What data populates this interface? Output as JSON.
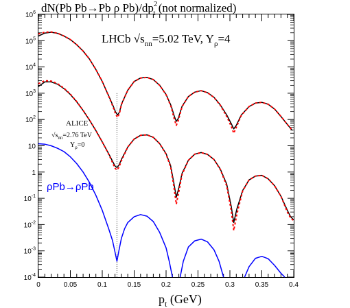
{
  "chart_data": {
    "type": "line",
    "title": {
      "main": "dN(Pb Pb→Pb ρ Pb)/dp",
      "sup": "2",
      "sub": "t",
      "tail": "  (not normalized)"
    },
    "xlabel": {
      "main": "p",
      "sub": "t",
      "tail": "  (GeV)"
    },
    "ylabel": "",
    "xlim": [
      0,
      0.4
    ],
    "ylim": [
      0.0001,
      1000000
    ],
    "yscale": "log",
    "grid": false,
    "x_ticks": [
      "0",
      "0.05",
      "0.1",
      "0.15",
      "0.2",
      "0.25",
      "0.3",
      "0.35",
      "0.4"
    ],
    "x_tick_values": [
      0,
      0.05,
      0.1,
      0.15,
      0.2,
      0.25,
      0.3,
      0.35,
      0.4
    ],
    "y_ticks": [
      {
        "value": 1000000,
        "mant": "10",
        "exp": "6"
      },
      {
        "value": 100000,
        "mant": "10",
        "exp": "5"
      },
      {
        "value": 10000,
        "mant": "10",
        "exp": "4"
      },
      {
        "value": 1000,
        "mant": "10",
        "exp": "3"
      },
      {
        "value": 100,
        "mant": "10",
        "exp": "2"
      },
      {
        "value": 10,
        "mant": "10",
        "exp": ""
      },
      {
        "value": 1,
        "mant": "1",
        "exp": ""
      },
      {
        "value": 0.1,
        "mant": "10",
        "exp": "-1"
      },
      {
        "value": 0.01,
        "mant": "10",
        "exp": "-2"
      },
      {
        "value": 0.001,
        "mant": "10",
        "exp": "-3"
      },
      {
        "value": 0.0001,
        "mant": "10",
        "exp": "-4"
      }
    ],
    "vline_x": 0.123,
    "annotations": {
      "lhcb": {
        "a": "LHCb  √s",
        "sub": "nn",
        "b": "=5.02 TeV, Y",
        "sub2": "ρ",
        "c": "=4"
      },
      "alice_title": "ALICE",
      "alice_energy": {
        "a": "√s",
        "sub": "nn",
        "b": "=2.76 TeV"
      },
      "alice_y": {
        "a": "Y",
        "sub": "ρ",
        "b": "=0"
      },
      "rho_label": "ρPb→ρPb"
    },
    "series": [
      {
        "role": "lhcb-solid",
        "color": "#000000",
        "style": "solid",
        "points": [
          [
            0.0,
            150000
          ],
          [
            0.01,
            195000
          ],
          [
            0.02,
            210000
          ],
          [
            0.03,
            190000
          ],
          [
            0.04,
            150000
          ],
          [
            0.05,
            110000
          ],
          [
            0.06,
            70000
          ],
          [
            0.07,
            40000
          ],
          [
            0.08,
            20000
          ],
          [
            0.09,
            8000
          ],
          [
            0.1,
            2800
          ],
          [
            0.11,
            800
          ],
          [
            0.117,
            330
          ],
          [
            0.121,
            190
          ],
          [
            0.124,
            150
          ],
          [
            0.127,
            190
          ],
          [
            0.13,
            380
          ],
          [
            0.14,
            1300
          ],
          [
            0.15,
            2800
          ],
          [
            0.16,
            3800
          ],
          [
            0.17,
            4000
          ],
          [
            0.18,
            3300
          ],
          [
            0.19,
            2000
          ],
          [
            0.2,
            900
          ],
          [
            0.208,
            330
          ],
          [
            0.213,
            130
          ],
          [
            0.216,
            85
          ],
          [
            0.219,
            110
          ],
          [
            0.225,
            320
          ],
          [
            0.235,
            750
          ],
          [
            0.245,
            1100
          ],
          [
            0.255,
            1250
          ],
          [
            0.265,
            1050
          ],
          [
            0.275,
            700
          ],
          [
            0.285,
            360
          ],
          [
            0.295,
            150
          ],
          [
            0.302,
            70
          ],
          [
            0.306,
            44
          ],
          [
            0.31,
            60
          ],
          [
            0.318,
            150
          ],
          [
            0.33,
            310
          ],
          [
            0.34,
            420
          ],
          [
            0.35,
            450
          ],
          [
            0.36,
            380
          ],
          [
            0.37,
            250
          ],
          [
            0.38,
            130
          ],
          [
            0.39,
            65
          ],
          [
            0.398,
            38
          ]
        ]
      },
      {
        "role": "lhcb-dashed",
        "color": "#ff0000",
        "style": "dashed",
        "points": [
          [
            0.0,
            180000
          ],
          [
            0.01,
            210000
          ],
          [
            0.02,
            215000
          ],
          [
            0.03,
            192000
          ],
          [
            0.04,
            151000
          ],
          [
            0.05,
            110000
          ],
          [
            0.06,
            70000
          ],
          [
            0.07,
            40000
          ],
          [
            0.08,
            20000
          ],
          [
            0.09,
            8000
          ],
          [
            0.1,
            2800
          ],
          [
            0.11,
            780
          ],
          [
            0.117,
            300
          ],
          [
            0.121,
            160
          ],
          [
            0.124,
            120
          ],
          [
            0.127,
            170
          ],
          [
            0.13,
            370
          ],
          [
            0.14,
            1300
          ],
          [
            0.15,
            2800
          ],
          [
            0.16,
            3800
          ],
          [
            0.17,
            4000
          ],
          [
            0.18,
            3300
          ],
          [
            0.19,
            2000
          ],
          [
            0.2,
            880
          ],
          [
            0.208,
            300
          ],
          [
            0.213,
            100
          ],
          [
            0.216,
            60
          ],
          [
            0.219,
            90
          ],
          [
            0.225,
            310
          ],
          [
            0.235,
            750
          ],
          [
            0.245,
            1100
          ],
          [
            0.255,
            1250
          ],
          [
            0.265,
            1050
          ],
          [
            0.275,
            690
          ],
          [
            0.285,
            350
          ],
          [
            0.295,
            130
          ],
          [
            0.302,
            55
          ],
          [
            0.306,
            30
          ],
          [
            0.31,
            50
          ],
          [
            0.318,
            145
          ],
          [
            0.33,
            310
          ],
          [
            0.34,
            420
          ],
          [
            0.35,
            450
          ],
          [
            0.36,
            380
          ],
          [
            0.37,
            250
          ],
          [
            0.38,
            130
          ],
          [
            0.39,
            65
          ],
          [
            0.398,
            38
          ]
        ]
      },
      {
        "role": "alice-solid",
        "color": "#000000",
        "style": "solid",
        "points": [
          [
            0.0,
            1800
          ],
          [
            0.01,
            2700
          ],
          [
            0.02,
            2700
          ],
          [
            0.03,
            2200
          ],
          [
            0.04,
            1500
          ],
          [
            0.05,
            900
          ],
          [
            0.06,
            470
          ],
          [
            0.07,
            220
          ],
          [
            0.08,
            95
          ],
          [
            0.09,
            38
          ],
          [
            0.1,
            14
          ],
          [
            0.11,
            5
          ],
          [
            0.116,
            2.6
          ],
          [
            0.12,
            1.7
          ],
          [
            0.123,
            1.5
          ],
          [
            0.126,
            1.8
          ],
          [
            0.13,
            3
          ],
          [
            0.14,
            9
          ],
          [
            0.15,
            18
          ],
          [
            0.16,
            25
          ],
          [
            0.17,
            26
          ],
          [
            0.18,
            21
          ],
          [
            0.19,
            12
          ],
          [
            0.2,
            5
          ],
          [
            0.207,
            1.8
          ],
          [
            0.212,
            0.4
          ],
          [
            0.216,
            0.11
          ],
          [
            0.22,
            0.25
          ],
          [
            0.225,
            0.9
          ],
          [
            0.235,
            2.8
          ],
          [
            0.245,
            4.8
          ],
          [
            0.255,
            5.5
          ],
          [
            0.265,
            4.7
          ],
          [
            0.275,
            3
          ],
          [
            0.285,
            1.3
          ],
          [
            0.295,
            0.35
          ],
          [
            0.302,
            0.05
          ],
          [
            0.306,
            0.012
          ],
          [
            0.311,
            0.04
          ],
          [
            0.32,
            0.2
          ],
          [
            0.33,
            0.5
          ],
          [
            0.34,
            0.7
          ],
          [
            0.35,
            0.75
          ],
          [
            0.36,
            0.55
          ],
          [
            0.37,
            0.3
          ],
          [
            0.38,
            0.12
          ],
          [
            0.39,
            0.035
          ],
          [
            0.395,
            0.02
          ],
          [
            0.4,
            0.015
          ]
        ]
      },
      {
        "role": "alice-dashed",
        "color": "#ff0000",
        "style": "dashed",
        "points": [
          [
            0.0,
            2300
          ],
          [
            0.01,
            3000
          ],
          [
            0.02,
            2900
          ],
          [
            0.03,
            2300
          ],
          [
            0.04,
            1550
          ],
          [
            0.05,
            920
          ],
          [
            0.06,
            480
          ],
          [
            0.07,
            222
          ],
          [
            0.08,
            96
          ],
          [
            0.09,
            38
          ],
          [
            0.1,
            14
          ],
          [
            0.11,
            4.8
          ],
          [
            0.116,
            2.3
          ],
          [
            0.12,
            1.4
          ],
          [
            0.123,
            1.2
          ],
          [
            0.126,
            1.5
          ],
          [
            0.13,
            2.7
          ],
          [
            0.14,
            9
          ],
          [
            0.15,
            18
          ],
          [
            0.16,
            25
          ],
          [
            0.17,
            26
          ],
          [
            0.18,
            21
          ],
          [
            0.19,
            12
          ],
          [
            0.2,
            4.8
          ],
          [
            0.207,
            1.6
          ],
          [
            0.212,
            0.3
          ],
          [
            0.216,
            0.06
          ],
          [
            0.22,
            0.18
          ],
          [
            0.225,
            0.8
          ],
          [
            0.235,
            2.8
          ],
          [
            0.245,
            4.8
          ],
          [
            0.255,
            5.5
          ],
          [
            0.265,
            4.7
          ],
          [
            0.275,
            3
          ],
          [
            0.285,
            1.25
          ],
          [
            0.295,
            0.3
          ],
          [
            0.302,
            0.035
          ],
          [
            0.306,
            0.006
          ],
          [
            0.311,
            0.025
          ],
          [
            0.32,
            0.19
          ],
          [
            0.33,
            0.5
          ],
          [
            0.34,
            0.7
          ],
          [
            0.35,
            0.75
          ],
          [
            0.36,
            0.55
          ],
          [
            0.37,
            0.3
          ],
          [
            0.38,
            0.12
          ],
          [
            0.39,
            0.03
          ],
          [
            0.395,
            0.018
          ],
          [
            0.4,
            0.014
          ]
        ]
      },
      {
        "role": "rho-blue",
        "color": "#0000ff",
        "style": "solid",
        "points": [
          [
            0.0,
            12
          ],
          [
            0.01,
            11.5
          ],
          [
            0.02,
            10
          ],
          [
            0.03,
            8
          ],
          [
            0.04,
            6
          ],
          [
            0.05,
            3.8
          ],
          [
            0.06,
            2.1
          ],
          [
            0.07,
            1
          ],
          [
            0.08,
            0.4
          ],
          [
            0.09,
            0.13
          ],
          [
            0.1,
            0.035
          ],
          [
            0.11,
            0.007
          ],
          [
            0.116,
            0.0025
          ],
          [
            0.12,
            0.0009
          ],
          [
            0.123,
            0.0004
          ],
          [
            0.126,
            0.001
          ],
          [
            0.13,
            0.003
          ],
          [
            0.135,
            0.007
          ],
          [
            0.14,
            0.012
          ],
          [
            0.15,
            0.02
          ],
          [
            0.16,
            0.024
          ],
          [
            0.17,
            0.021
          ],
          [
            0.18,
            0.013
          ],
          [
            0.19,
            0.005
          ],
          [
            0.2,
            0.0013
          ],
          [
            0.205,
            0.0004
          ],
          [
            0.21,
            0.0001
          ]
        ]
      },
      {
        "role": "rho-blue-2",
        "color": "#0000ff",
        "style": "solid",
        "points": [
          [
            0.222,
            0.0001
          ],
          [
            0.227,
            0.0004
          ],
          [
            0.235,
            0.0014
          ],
          [
            0.245,
            0.0024
          ],
          [
            0.255,
            0.0028
          ],
          [
            0.265,
            0.0022
          ],
          [
            0.275,
            0.0011
          ],
          [
            0.283,
            0.0004
          ],
          [
            0.29,
            0.0001
          ]
        ]
      },
      {
        "role": "rho-blue-3",
        "color": "#0000ff",
        "style": "solid",
        "points": [
          [
            0.323,
            0.0001
          ],
          [
            0.33,
            0.00025
          ],
          [
            0.34,
            0.00052
          ],
          [
            0.35,
            0.00062
          ],
          [
            0.36,
            0.0005
          ],
          [
            0.37,
            0.00028
          ],
          [
            0.38,
            0.00014
          ],
          [
            0.386,
            0.0001
          ]
        ]
      }
    ]
  }
}
